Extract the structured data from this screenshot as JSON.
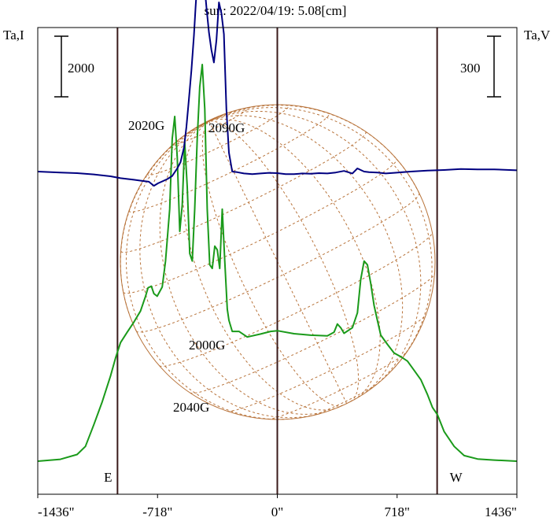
{
  "title": "sun: 2022/04/19: 5.08[cm]",
  "colors": {
    "intensity": "#1a9a1a",
    "polarization": "#000080",
    "disk": "#b8733a",
    "frame": "#000000",
    "title": "#1a1a70",
    "marker": "#3a1a1a"
  },
  "chart_data": {
    "type": "line",
    "title": "sun: 2022/04/19: 5.08[cm]",
    "xlabel": "",
    "ylabel_left": "Ta,I",
    "ylabel_right": "Ta,V",
    "xlim": [
      -1436,
      1436
    ],
    "xticks": [
      {
        "value": -1436,
        "label": "-1436\""
      },
      {
        "value": -718,
        "label": "-718\""
      },
      {
        "value": 0,
        "label": "0\""
      },
      {
        "value": 718,
        "label": "718\""
      },
      {
        "value": 1436,
        "label": "1436\""
      }
    ],
    "markers": [
      {
        "x": -958,
        "label": "E"
      },
      {
        "x": 0,
        "label": ""
      },
      {
        "x": 958,
        "label": "W"
      }
    ],
    "scale_bars": [
      {
        "side": "left",
        "label": "2000"
      },
      {
        "side": "right",
        "label": "300"
      }
    ],
    "annotations": [
      {
        "label": "2020G",
        "x": -730,
        "near": "Stokes V peak"
      },
      {
        "label": "2090G",
        "x": -270,
        "near": "Stokes V"
      },
      {
        "label": "2000G",
        "x": -250,
        "near": "Stokes I"
      },
      {
        "label": "2040G",
        "x": -470,
        "near": "Stokes V dip"
      }
    ],
    "grid": false,
    "series": [
      {
        "role": "intensity",
        "axis": "left",
        "x": [
          -1436,
          -1300,
          -1200,
          -1150,
          -1100,
          -1050,
          -1000,
          -970,
          -940,
          -900,
          -860,
          -820,
          -790,
          -775,
          -755,
          -740,
          -720,
          -690,
          -670,
          -645,
          -630,
          -615,
          -600,
          -585,
          -570,
          -555,
          -540,
          -525,
          -510,
          -495,
          -480,
          -465,
          -450,
          -435,
          -420,
          -405,
          -390,
          -375,
          -360,
          -345,
          -330,
          -315,
          -300,
          -290,
          -270,
          -230,
          -180,
          -100,
          -40,
          0,
          100,
          200,
          300,
          340,
          360,
          380,
          400,
          450,
          480,
          500,
          520,
          540,
          560,
          580,
          600,
          620,
          660,
          700,
          740,
          780,
          820,
          860,
          900,
          930,
          960,
          1000,
          1060,
          1120,
          1200,
          1300,
          1436
        ],
        "y": [
          0,
          50,
          180,
          400,
          980,
          1600,
          2300,
          2780,
          3200,
          3480,
          3750,
          4050,
          4450,
          4680,
          4720,
          4520,
          4450,
          4700,
          5400,
          6800,
          8700,
          9300,
          8200,
          6200,
          6900,
          8600,
          7400,
          5600,
          5400,
          6800,
          8700,
          10100,
          10700,
          9500,
          6800,
          5300,
          5200,
          5800,
          5700,
          5200,
          6800,
          5400,
          4100,
          3800,
          3500,
          3500,
          3350,
          3430,
          3500,
          3520,
          3440,
          3400,
          3380,
          3480,
          3700,
          3600,
          3450,
          3600,
          4000,
          4900,
          5400,
          5300,
          4800,
          4200,
          3800,
          3400,
          3150,
          2920,
          2820,
          2700,
          2450,
          2200,
          1800,
          1450,
          1250,
          800,
          400,
          150,
          60,
          30,
          0
        ]
      },
      {
        "role": "polarization",
        "axis": "right",
        "x": [
          -1436,
          -1300,
          -1200,
          -1100,
          -1000,
          -940,
          -860,
          -800,
          -770,
          -740,
          -715,
          -690,
          -660,
          -630,
          -600,
          -580,
          -560,
          -545,
          -530,
          -515,
          -500,
          -490,
          -480,
          -470,
          -455,
          -440,
          -425,
          -410,
          -395,
          -380,
          -365,
          -350,
          -335,
          -320,
          -305,
          -290,
          -270,
          -240,
          -200,
          -150,
          -100,
          -50,
          0,
          50,
          100,
          150,
          200,
          250,
          300,
          350,
          400,
          450,
          480,
          500,
          520,
          550,
          600,
          650,
          700,
          800,
          900,
          1000,
          1100,
          1200,
          1300,
          1436
        ],
        "y": [
          0,
          3,
          5,
          9,
          15,
          21,
          26,
          30,
          32,
          45,
          37,
          31,
          24,
          14,
          -10,
          -30,
          -75,
          -140,
          -228,
          -320,
          -430,
          -520,
          -600,
          -665,
          -680,
          -610,
          -520,
          -440,
          -385,
          -345,
          -415,
          -535,
          -500,
          -435,
          -195,
          -60,
          0,
          2,
          6,
          8,
          6,
          4,
          5,
          8,
          8,
          6,
          7,
          5,
          6,
          3,
          -2,
          6,
          -10,
          -5,
          0,
          2,
          3,
          6,
          4,
          0,
          -3,
          -5,
          -8,
          -7,
          -7,
          -4
        ]
      }
    ]
  }
}
